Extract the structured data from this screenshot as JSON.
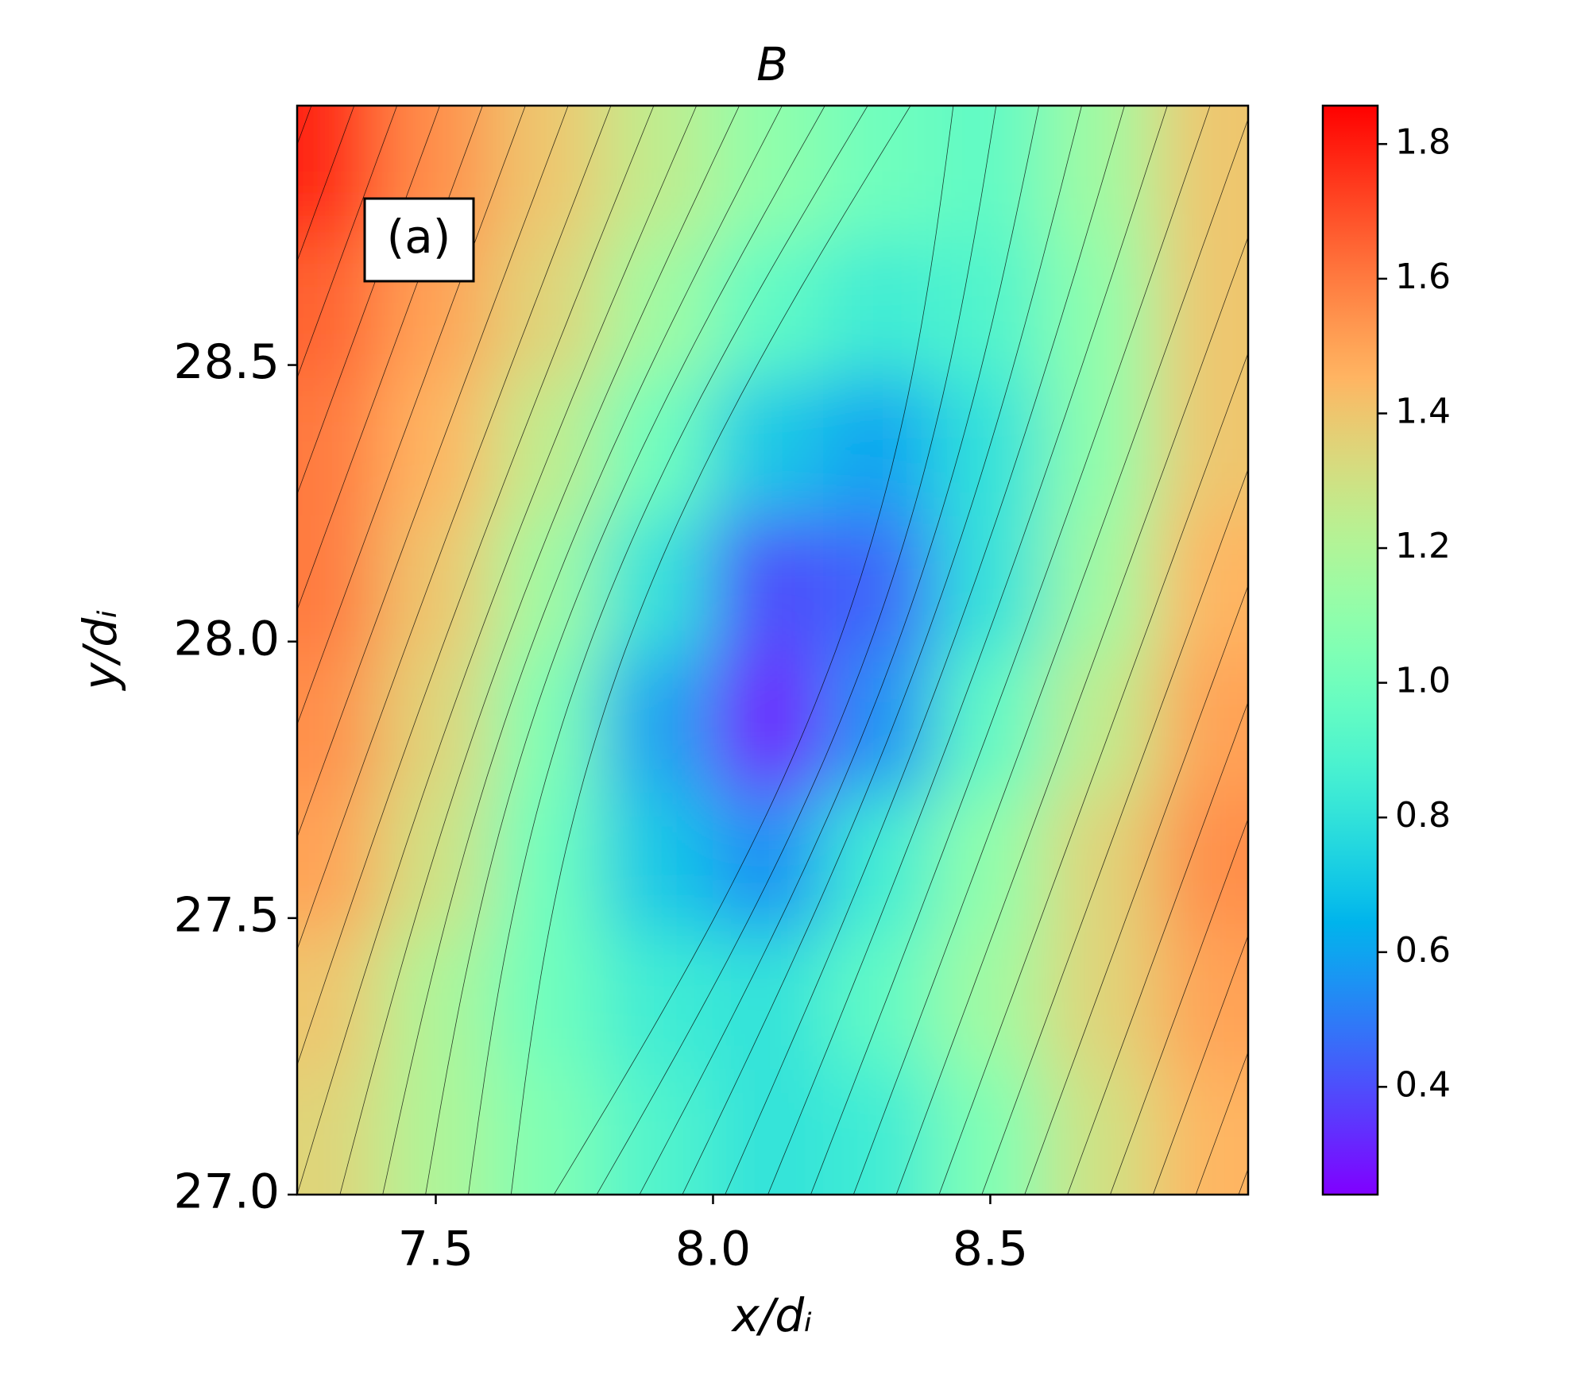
{
  "chart_data": {
    "type": "heatmap",
    "title": "B",
    "x_label": "x/dᵢ",
    "y_label": "y/dᵢ",
    "annotation": "(a)",
    "colormap": "rainbow",
    "x": [
      7.3,
      7.5,
      7.7,
      7.9,
      8.1,
      8.3,
      8.5,
      8.7,
      8.9
    ],
    "y": [
      28.85,
      28.6,
      28.35,
      28.1,
      27.85,
      27.6,
      27.35,
      27.1
    ],
    "z": [
      [
        1.78,
        1.55,
        1.4,
        1.25,
        1.1,
        1.0,
        0.95,
        1.15,
        1.4
      ],
      [
        1.65,
        1.5,
        1.35,
        1.15,
        0.95,
        0.85,
        0.9,
        1.1,
        1.4
      ],
      [
        1.6,
        1.45,
        1.25,
        1.0,
        0.7,
        0.6,
        0.8,
        1.1,
        1.4
      ],
      [
        1.6,
        1.4,
        1.15,
        0.8,
        0.4,
        0.45,
        0.8,
        1.15,
        1.45
      ],
      [
        1.55,
        1.35,
        1.05,
        0.6,
        0.3,
        0.55,
        0.95,
        1.25,
        1.5
      ],
      [
        1.5,
        1.3,
        1.0,
        0.7,
        0.55,
        0.85,
        1.1,
        1.35,
        1.55
      ],
      [
        1.4,
        1.2,
        1.0,
        0.85,
        0.8,
        0.95,
        1.15,
        1.35,
        1.5
      ],
      [
        1.35,
        1.2,
        1.05,
        0.9,
        0.8,
        0.85,
        1.05,
        1.3,
        1.45
      ]
    ],
    "xlim": [
      7.25,
      8.965
    ],
    "ylim": [
      27.0,
      28.969
    ],
    "xticks": [
      7.5,
      {
        "value": 8,
        "label": "8.0"
      },
      8.5
    ],
    "yticks": [
      {
        "value": 27,
        "label": "27.0"
      },
      27.5,
      {
        "value": 28,
        "label": "28.0"
      },
      28.5
    ],
    "clim": [
      0.24,
      1.857
    ],
    "cticks": [
      0.4,
      0.6,
      0.8,
      {
        "value": 1,
        "label": "1.0"
      },
      1.2,
      1.4,
      1.6,
      1.8
    ]
  }
}
